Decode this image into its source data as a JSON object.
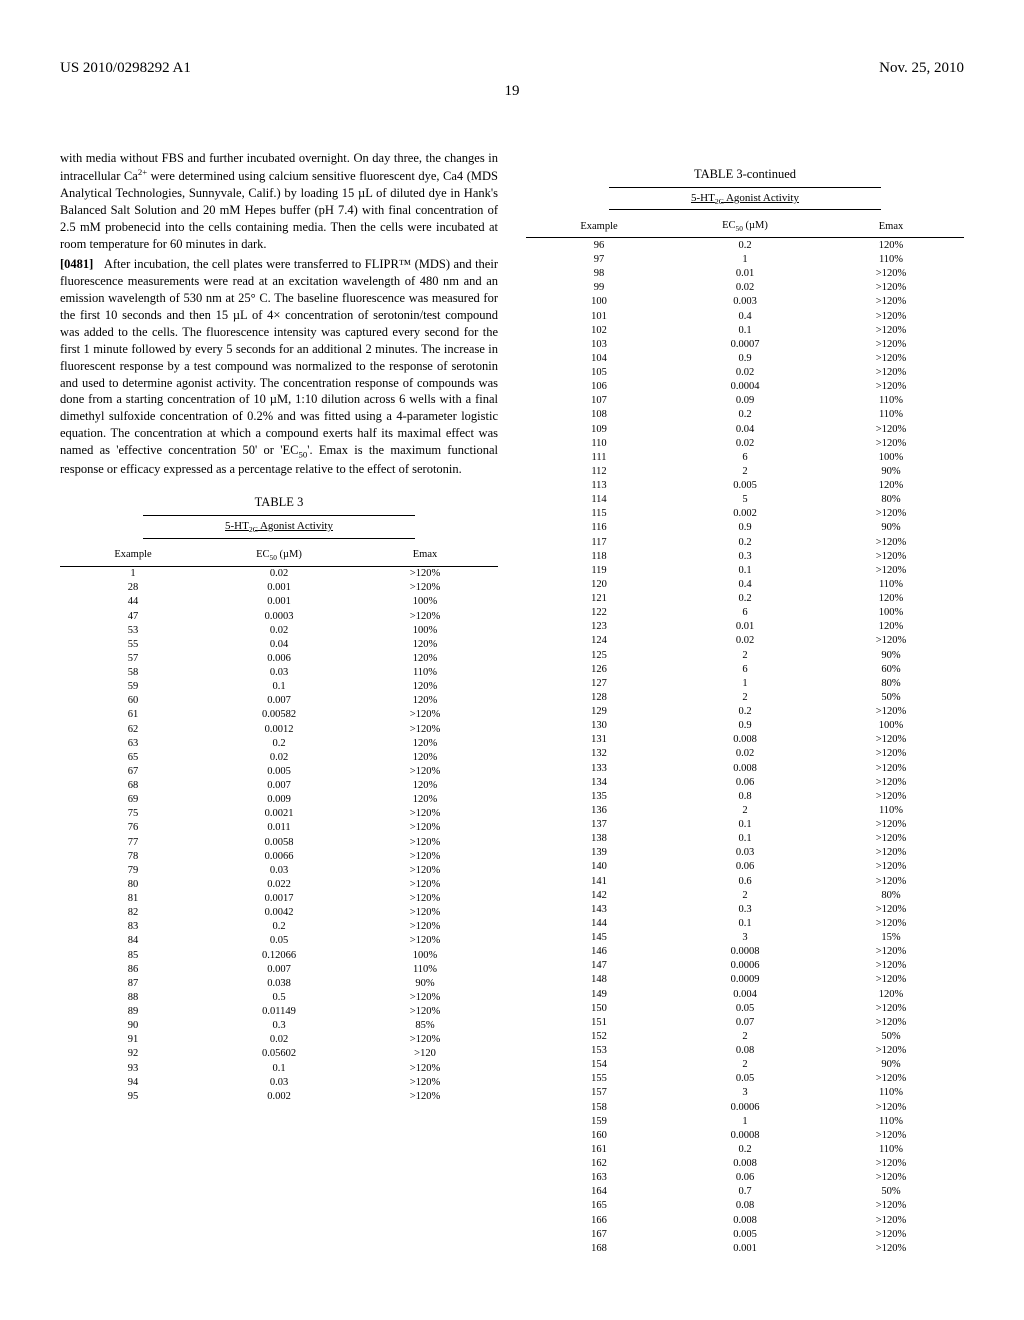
{
  "header": {
    "pub_number": "US 2010/0298292 A1",
    "date": "Nov. 25, 2010",
    "page": "19"
  },
  "paragraphs": {
    "p1a": "with media without FBS and further incubated overnight. On day three, the changes in intracellular Ca",
    "p1b": " were determined using calcium sensitive fluorescent dye, Ca4 (MDS Analytical Technologies, Sunnyvale, Calif.) by loading 15 µL of diluted dye in Hank's Balanced Salt Solution and 20 mM Hepes buffer (pH 7.4) with final concentration of 2.5 mM probenecid into the cells containing media. Then the cells were incubated at room temperature for 60 minutes in dark.",
    "p2_num": "[0481]",
    "p2a": "After incubation, the cell plates were transferred to FLIPR™ (MDS) and their fluorescence measurements were read at an excitation wavelength of 480 nm and an emission wavelength of 530 nm at 25° C. The baseline fluorescence was measured for the first 10 seconds and then 15 µL of 4× concentration of serotonin/test compound was added to the cells. The fluorescence intensity was captured every second for the first 1 minute followed by every 5 seconds for an additional 2 minutes. The increase in fluorescent response by a test compound was normalized to the response of serotonin and used to determine agonist activity. The concentration response of compounds was done from a starting concentration of 10 µM, 1:10 dilution across 6 wells with a final dimethyl sulfoxide concentration of 0.2% and was fitted using a 4-parameter logistic equation. The concentration at which a compound exerts half its maximal effect was named as 'effective concentration 50' or 'EC",
    "p2b": "'. Emax is the maximum functional response or efficacy expressed as a percentage relative to the effect of serotonin."
  },
  "table": {
    "caption_l": "TABLE 3",
    "caption_r": "TABLE 3-continued",
    "subtitle_prefix": "5-HT",
    "subtitle_sub": "2C",
    "subtitle_suffix": " Agonist Activity",
    "headers": {
      "example": "Example",
      "ec50_pre": "EC",
      "ec50_sub": "50",
      "ec50_post": " (µM)",
      "emax": "Emax"
    },
    "rows_left": [
      [
        "1",
        "0.02",
        ">120%"
      ],
      [
        "28",
        "0.001",
        ">120%"
      ],
      [
        "44",
        "0.001",
        "100%"
      ],
      [
        "47",
        "0.0003",
        ">120%"
      ],
      [
        "53",
        "0.02",
        "100%"
      ],
      [
        "55",
        "0.04",
        "120%"
      ],
      [
        "57",
        "0.006",
        "120%"
      ],
      [
        "58",
        "0.03",
        "110%"
      ],
      [
        "59",
        "0.1",
        "120%"
      ],
      [
        "60",
        "0.007",
        "120%"
      ],
      [
        "61",
        "0.00582",
        ">120%"
      ],
      [
        "62",
        "0.0012",
        ">120%"
      ],
      [
        "63",
        "0.2",
        "120%"
      ],
      [
        "65",
        "0.02",
        "120%"
      ],
      [
        "67",
        "0.005",
        ">120%"
      ],
      [
        "68",
        "0.007",
        "120%"
      ],
      [
        "69",
        "0.009",
        "120%"
      ],
      [
        "75",
        "0.0021",
        ">120%"
      ],
      [
        "76",
        "0.011",
        ">120%"
      ],
      [
        "77",
        "0.0058",
        ">120%"
      ],
      [
        "78",
        "0.0066",
        ">120%"
      ],
      [
        "79",
        "0.03",
        ">120%"
      ],
      [
        "80",
        "0.022",
        ">120%"
      ],
      [
        "81",
        "0.0017",
        ">120%"
      ],
      [
        "82",
        "0.0042",
        ">120%"
      ],
      [
        "83",
        "0.2",
        ">120%"
      ],
      [
        "84",
        "0.05",
        ">120%"
      ],
      [
        "85",
        "0.12066",
        "100%"
      ],
      [
        "86",
        "0.007",
        "110%"
      ],
      [
        "87",
        "0.038",
        "90%"
      ],
      [
        "88",
        "0.5",
        ">120%"
      ],
      [
        "89",
        "0.01149",
        ">120%"
      ],
      [
        "90",
        "0.3",
        "85%"
      ],
      [
        "91",
        "0.02",
        ">120%"
      ],
      [
        "92",
        "0.05602",
        ">120"
      ],
      [
        "93",
        "0.1",
        ">120%"
      ],
      [
        "94",
        "0.03",
        ">120%"
      ],
      [
        "95",
        "0.002",
        ">120%"
      ]
    ],
    "rows_right": [
      [
        "96",
        "0.2",
        "120%"
      ],
      [
        "97",
        "1",
        "110%"
      ],
      [
        "98",
        "0.01",
        ">120%"
      ],
      [
        "99",
        "0.02",
        ">120%"
      ],
      [
        "100",
        "0.003",
        ">120%"
      ],
      [
        "101",
        "0.4",
        ">120%"
      ],
      [
        "102",
        "0.1",
        ">120%"
      ],
      [
        "103",
        "0.0007",
        ">120%"
      ],
      [
        "104",
        "0.9",
        ">120%"
      ],
      [
        "105",
        "0.02",
        ">120%"
      ],
      [
        "106",
        "0.0004",
        ">120%"
      ],
      [
        "107",
        "0.09",
        "110%"
      ],
      [
        "108",
        "0.2",
        "110%"
      ],
      [
        "109",
        "0.04",
        ">120%"
      ],
      [
        "110",
        "0.02",
        ">120%"
      ],
      [
        "111",
        "6",
        "100%"
      ],
      [
        "112",
        "2",
        "90%"
      ],
      [
        "113",
        "0.005",
        "120%"
      ],
      [
        "114",
        "5",
        "80%"
      ],
      [
        "115",
        "0.002",
        ">120%"
      ],
      [
        "116",
        "0.9",
        "90%"
      ],
      [
        "117",
        "0.2",
        ">120%"
      ],
      [
        "118",
        "0.3",
        ">120%"
      ],
      [
        "119",
        "0.1",
        ">120%"
      ],
      [
        "120",
        "0.4",
        "110%"
      ],
      [
        "121",
        "0.2",
        "120%"
      ],
      [
        "122",
        "6",
        "100%"
      ],
      [
        "123",
        "0.01",
        "120%"
      ],
      [
        "124",
        "0.02",
        ">120%"
      ],
      [
        "125",
        "2",
        "90%"
      ],
      [
        "126",
        "6",
        "60%"
      ],
      [
        "127",
        "1",
        "80%"
      ],
      [
        "128",
        "2",
        "50%"
      ],
      [
        "129",
        "0.2",
        ">120%"
      ],
      [
        "130",
        "0.9",
        "100%"
      ],
      [
        "131",
        "0.008",
        ">120%"
      ],
      [
        "132",
        "0.02",
        ">120%"
      ],
      [
        "133",
        "0.008",
        ">120%"
      ],
      [
        "134",
        "0.06",
        ">120%"
      ],
      [
        "135",
        "0.8",
        ">120%"
      ],
      [
        "136",
        "2",
        "110%"
      ],
      [
        "137",
        "0.1",
        ">120%"
      ],
      [
        "138",
        "0.1",
        ">120%"
      ],
      [
        "139",
        "0.03",
        ">120%"
      ],
      [
        "140",
        "0.06",
        ">120%"
      ],
      [
        "141",
        "0.6",
        ">120%"
      ],
      [
        "142",
        "2",
        "80%"
      ],
      [
        "143",
        "0.3",
        ">120%"
      ],
      [
        "144",
        "0.1",
        ">120%"
      ],
      [
        "145",
        "3",
        "15%"
      ],
      [
        "146",
        "0.0008",
        ">120%"
      ],
      [
        "147",
        "0.0006",
        ">120%"
      ],
      [
        "148",
        "0.0009",
        ">120%"
      ],
      [
        "149",
        "0.004",
        "120%"
      ],
      [
        "150",
        "0.05",
        ">120%"
      ],
      [
        "151",
        "0.07",
        ">120%"
      ],
      [
        "152",
        "2",
        "50%"
      ],
      [
        "153",
        "0.08",
        ">120%"
      ],
      [
        "154",
        "2",
        "90%"
      ],
      [
        "155",
        "0.05",
        ">120%"
      ],
      [
        "157",
        "3",
        "110%"
      ],
      [
        "158",
        "0.0006",
        ">120%"
      ],
      [
        "159",
        "1",
        "110%"
      ],
      [
        "160",
        "0.0008",
        ">120%"
      ],
      [
        "161",
        "0.2",
        "110%"
      ],
      [
        "162",
        "0.008",
        ">120%"
      ],
      [
        "163",
        "0.06",
        ">120%"
      ],
      [
        "164",
        "0.7",
        "50%"
      ],
      [
        "165",
        "0.08",
        ">120%"
      ],
      [
        "166",
        "0.008",
        ">120%"
      ],
      [
        "167",
        "0.005",
        ">120%"
      ],
      [
        "168",
        "0.001",
        ">120%"
      ]
    ]
  }
}
